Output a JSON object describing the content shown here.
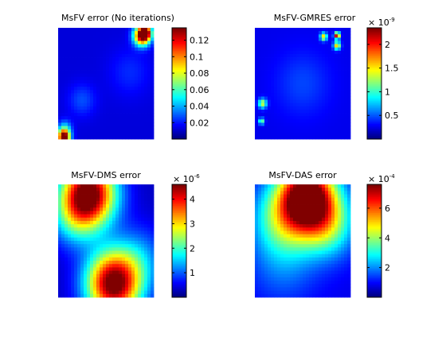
{
  "chart_data": [
    {
      "type": "heatmap",
      "title": "MsFV error (No iterations)",
      "colormap": "jet",
      "clim": [
        0,
        0.135
      ],
      "colorbar_ticks": [
        "0.02",
        "0.04",
        "0.06",
        "0.08",
        "0.1",
        "0.12"
      ],
      "colorbar_tick_values": [
        0.02,
        0.04,
        0.06,
        0.08,
        0.1,
        0.12
      ],
      "colorbar_exponent": "",
      "background_level": 0.012,
      "hotspots": [
        {
          "x": 0.88,
          "y": 0.93,
          "peak": 0.135,
          "spread": 0.06
        },
        {
          "x": 0.92,
          "y": 0.96,
          "peak": 0.07,
          "spread": 0.04
        },
        {
          "x": 0.06,
          "y": 0.02,
          "peak": 0.135,
          "spread": 0.045
        },
        {
          "x": 0.07,
          "y": 0.1,
          "peak": 0.03,
          "spread": 0.05
        },
        {
          "x": 0.25,
          "y": 0.35,
          "peak": 0.015,
          "spread": 0.1
        },
        {
          "x": 0.75,
          "y": 0.6,
          "peak": 0.01,
          "spread": 0.15
        }
      ]
    },
    {
      "type": "heatmap",
      "title": "MsFV-GMRES error",
      "colormap": "jet",
      "clim": [
        0,
        2.35
      ],
      "colorbar_ticks": [
        "0.5",
        "1",
        "1.5",
        "2"
      ],
      "colorbar_tick_values": [
        0.5,
        1,
        1.5,
        2
      ],
      "colorbar_exponent": "-9",
      "background_level": 0.25,
      "hotspots": [
        {
          "x": 0.86,
          "y": 0.93,
          "peak": 2.2,
          "spread": 0.02
        },
        {
          "x": 0.86,
          "y": 0.84,
          "peak": 1.4,
          "spread": 0.025
        },
        {
          "x": 0.72,
          "y": 0.92,
          "peak": 1.3,
          "spread": 0.025
        },
        {
          "x": 0.08,
          "y": 0.32,
          "peak": 1.1,
          "spread": 0.03
        },
        {
          "x": 0.07,
          "y": 0.16,
          "peak": 1.0,
          "spread": 0.02
        },
        {
          "x": 0.5,
          "y": 0.5,
          "peak": 0.2,
          "spread": 0.2
        }
      ]
    },
    {
      "type": "heatmap",
      "title": "MsFV-DMS error",
      "colormap": "jet",
      "clim": [
        0,
        4.6
      ],
      "colorbar_ticks": [
        "1",
        "2",
        "3",
        "4"
      ],
      "colorbar_tick_values": [
        1,
        2,
        3,
        4
      ],
      "colorbar_exponent": "-6",
      "background_level": 0.3,
      "hotspots": [
        {
          "x": 0.32,
          "y": 0.92,
          "peak": 4.5,
          "spread": 0.2
        },
        {
          "x": 0.58,
          "y": 0.12,
          "peak": 4.5,
          "spread": 0.2
        },
        {
          "x": 0.18,
          "y": 0.7,
          "peak": 1.2,
          "spread": 0.18
        },
        {
          "x": 0.85,
          "y": 0.35,
          "peak": 0.8,
          "spread": 0.2
        }
      ]
    },
    {
      "type": "heatmap",
      "title": "MsFV-DAS error",
      "colormap": "jet",
      "clim": [
        0,
        7.6
      ],
      "colorbar_ticks": [
        "2",
        "4",
        "6"
      ],
      "colorbar_tick_values": [
        2,
        4,
        6
      ],
      "colorbar_exponent": "-4",
      "background_level": 0.8,
      "hotspots": [
        {
          "x": 0.55,
          "y": 0.9,
          "peak": 7.3,
          "spread": 0.2
        },
        {
          "x": 0.3,
          "y": 0.7,
          "peak": 2.8,
          "spread": 0.22
        },
        {
          "x": 0.75,
          "y": 0.65,
          "peak": 3.0,
          "spread": 0.2
        },
        {
          "x": 0.3,
          "y": 0.3,
          "peak": 1.0,
          "spread": 0.25
        }
      ]
    }
  ]
}
